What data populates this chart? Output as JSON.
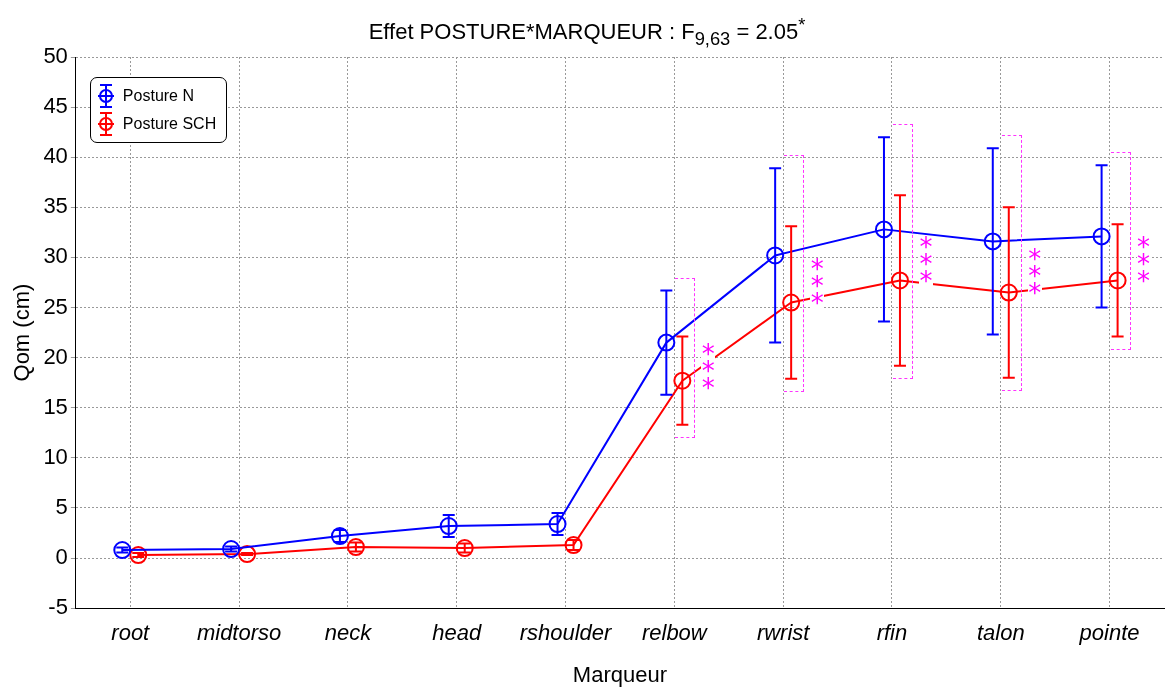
{
  "chart_data": {
    "type": "line",
    "title": "Effet POSTURE*MARQUEUR : F$_{9,63}$ = 2.05$^{*}$",
    "xlabel": "Marqueur",
    "ylabel": "Qom (cm)",
    "categories": [
      "root",
      "midtorso",
      "neck",
      "head",
      "rshoulder",
      "relbow",
      "rwrist",
      "rfin",
      "talon",
      "pointe"
    ],
    "series": [
      {
        "name": "Posture N",
        "color": "#0000ff",
        "values": [
          0.8,
          0.9,
          2.2,
          3.2,
          3.4,
          21.5,
          30.2,
          32.8,
          31.6,
          32.1
        ],
        "errors": [
          0.25,
          0.25,
          0.6,
          1.1,
          1.1,
          5.2,
          8.7,
          9.2,
          9.3,
          7.1
        ]
      },
      {
        "name": "Posture SCH",
        "color": "#ff0000",
        "values": [
          0.3,
          0.4,
          1.1,
          1.0,
          1.3,
          17.7,
          25.5,
          27.7,
          26.5,
          27.7
        ],
        "errors": [
          0.2,
          0.1,
          0.45,
          0.45,
          0.5,
          4.4,
          7.6,
          8.5,
          8.5,
          5.6
        ]
      }
    ],
    "ylim": [
      -5,
      50
    ],
    "yticks": [
      -5,
      0,
      5,
      10,
      15,
      20,
      25,
      30,
      35,
      40,
      45,
      50
    ],
    "grid": true,
    "legend": "top left",
    "marker": "circle",
    "line_style": "solid",
    "annotations": [
      "***",
      "***",
      "***",
      "***",
      "***"
    ]
  }
}
